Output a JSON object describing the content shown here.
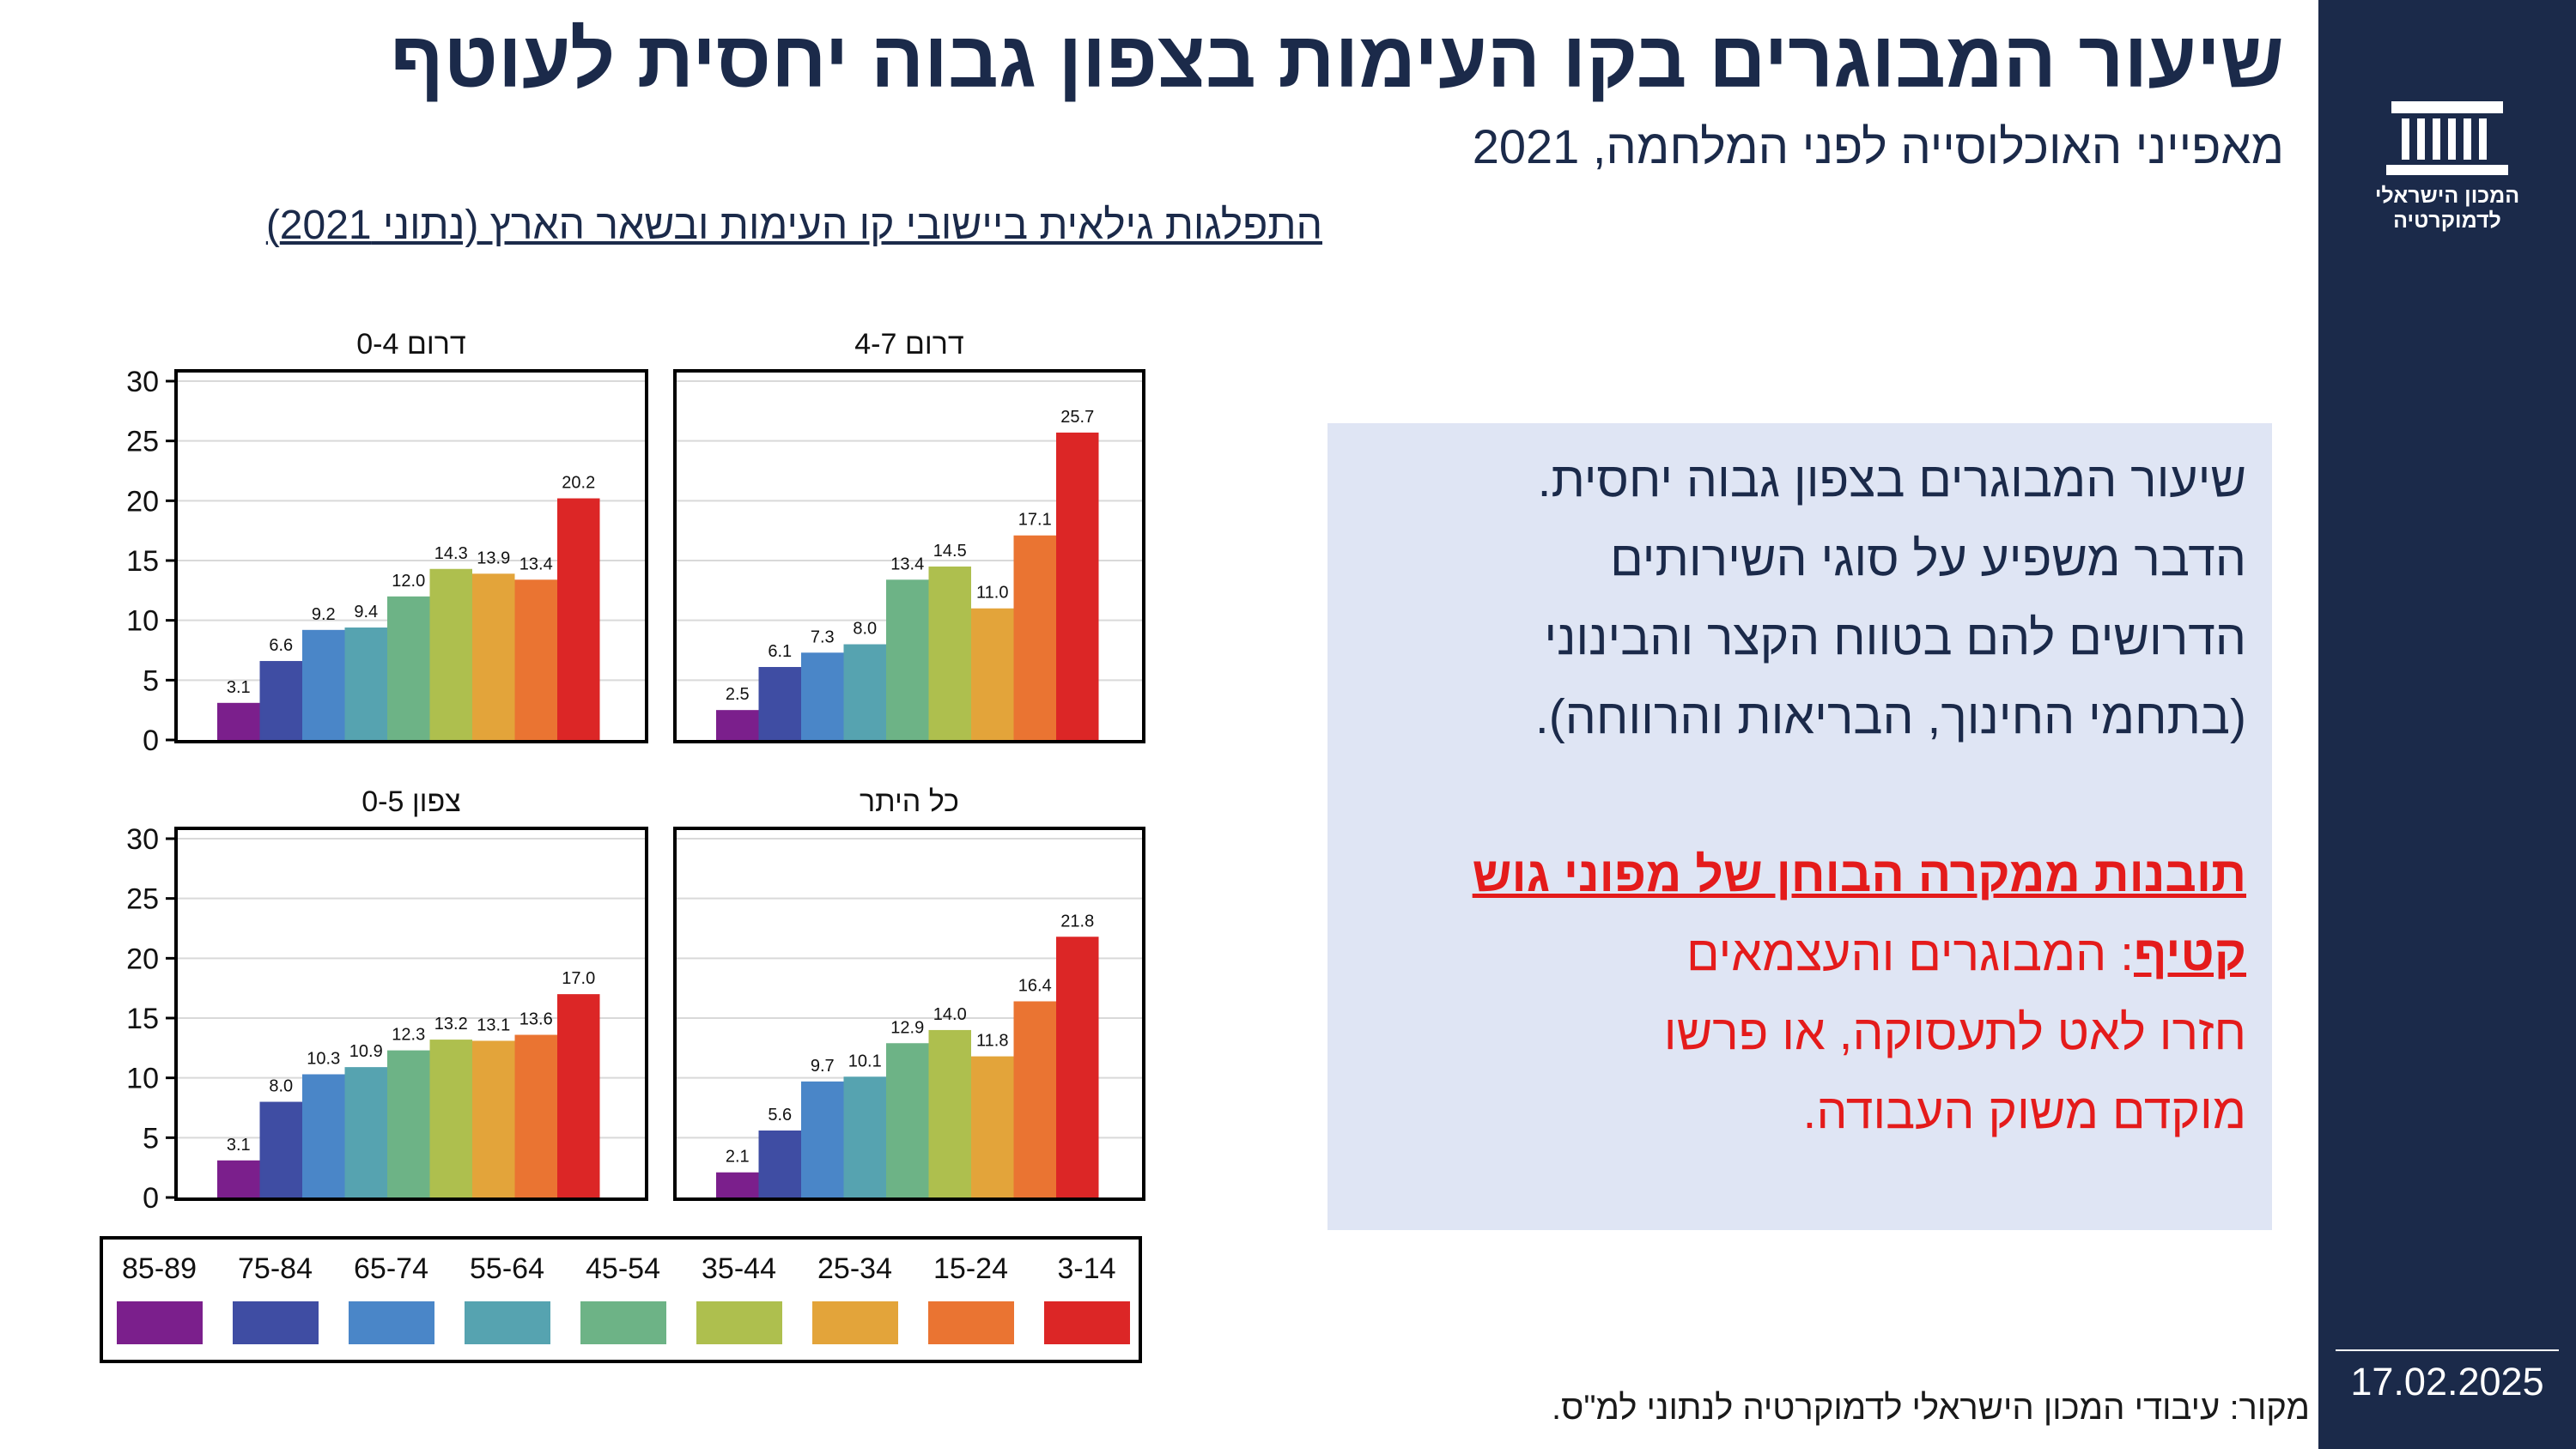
{
  "header": {
    "title": "שיעור המבוגרים בקו העימות בצפון גבוה יחסית לעוטף",
    "subtitle": "מאפייני האוכלוסייה לפני המלחמה, 2021",
    "chart_heading": "התפלגות גילאית ביישובי קו העימות ובשאר הארץ (נתוני 2021)"
  },
  "sidebar": {
    "logo_icon": "institution-building-icon",
    "logo_line1": "המכון הישראלי",
    "logo_line2": "לדמוקרטיה",
    "date": "17.02.2025"
  },
  "callout": {
    "line1": "שיעור המבוגרים בצפון  גבוה יחסית.",
    "line2": "הדבר משפיע על סוגי השירותים",
    "line3": "הדרושים להם בטווח הקצר והבינוני",
    "line4": "(בתחמי החינוך, הבריאות והרווחה).",
    "red_bold": "תובנות ממקרה הבוחן של מפוני גוש קטיף",
    "red_rest_1": ": המבוגרים והעצמאים",
    "red_rest_2": "חזרו לאט לתעסוקה,  או פרשו",
    "red_rest_3": "מוקדם משוק העבודה."
  },
  "source": "מקור: עיבודי המכון הישראלי לדמוקרטיה לנתוני למ\"ס.",
  "chart_data": [
    {
      "type": "bar",
      "title": "דרום 0-4",
      "categories": [
        "85-89",
        "75-84",
        "65-74",
        "55-64",
        "45-54",
        "35-44",
        "25-34",
        "15-24",
        "3-14"
      ],
      "values": [
        3.1,
        6.6,
        9.2,
        9.4,
        12.0,
        14.3,
        13.9,
        13.4,
        20.2
      ],
      "value_labels": [
        "3.1",
        "6.6",
        "9.2",
        "9.4",
        "12.0",
        "14.3",
        "13.9",
        "13.4",
        "20.2"
      ],
      "ylim": [
        0,
        30
      ],
      "yticks": [
        0,
        5,
        10,
        15,
        20,
        25,
        30
      ],
      "grid": true
    },
    {
      "type": "bar",
      "title": "דרום 4-7",
      "categories": [
        "85-89",
        "75-84",
        "65-74",
        "55-64",
        "45-54",
        "35-44",
        "25-34",
        "15-24",
        "3-14"
      ],
      "values": [
        2.5,
        6.1,
        7.3,
        8.0,
        13.4,
        14.5,
        11.0,
        17.1,
        25.7
      ],
      "value_labels": [
        "2.5",
        "6.1",
        "7.3",
        "8.0",
        "13.4",
        "14.5",
        "11.0",
        "17.1",
        "25.7"
      ],
      "ylim": [
        0,
        30
      ],
      "yticks": [
        0,
        5,
        10,
        15,
        20,
        25,
        30
      ],
      "grid": true
    },
    {
      "type": "bar",
      "title": "צפון 0-5",
      "categories": [
        "85-89",
        "75-84",
        "65-74",
        "55-64",
        "45-54",
        "35-44",
        "25-34",
        "15-24",
        "3-14"
      ],
      "values": [
        3.1,
        8.0,
        10.3,
        10.9,
        12.3,
        13.2,
        13.1,
        13.6,
        17.0
      ],
      "value_labels": [
        "3.1",
        "8.0",
        "10.3",
        "10.9",
        "12.3",
        "13.2",
        "13.1",
        "13.6",
        "17.0"
      ],
      "ylim": [
        0,
        30
      ],
      "yticks": [
        0,
        5,
        10,
        15,
        20,
        25,
        30
      ],
      "grid": true
    },
    {
      "type": "bar",
      "title": "כל היתר",
      "categories": [
        "85-89",
        "75-84",
        "65-74",
        "55-64",
        "45-54",
        "35-44",
        "25-34",
        "15-24",
        "3-14"
      ],
      "values": [
        2.1,
        5.6,
        9.7,
        10.1,
        12.9,
        14.0,
        11.8,
        16.4,
        21.8
      ],
      "value_labels": [
        "2.1",
        "5.6",
        "9.7",
        "10.1",
        "12.9",
        "14.0",
        "11.8",
        "16.4",
        "21.8"
      ],
      "ylim": [
        0,
        30
      ],
      "yticks": [
        0,
        5,
        10,
        15,
        20,
        25,
        30
      ],
      "grid": true
    }
  ],
  "legend": {
    "items": [
      "85-89",
      "75-84",
      "65-74",
      "55-64",
      "45-54",
      "35-44",
      "25-34",
      "15-24",
      "3-14"
    ],
    "colors": [
      "#7b1f8c",
      "#3f4da3",
      "#4a86c8",
      "#56a3b0",
      "#6db386",
      "#aebf4e",
      "#e3a43a",
      "#ea7432",
      "#dc2626"
    ]
  }
}
